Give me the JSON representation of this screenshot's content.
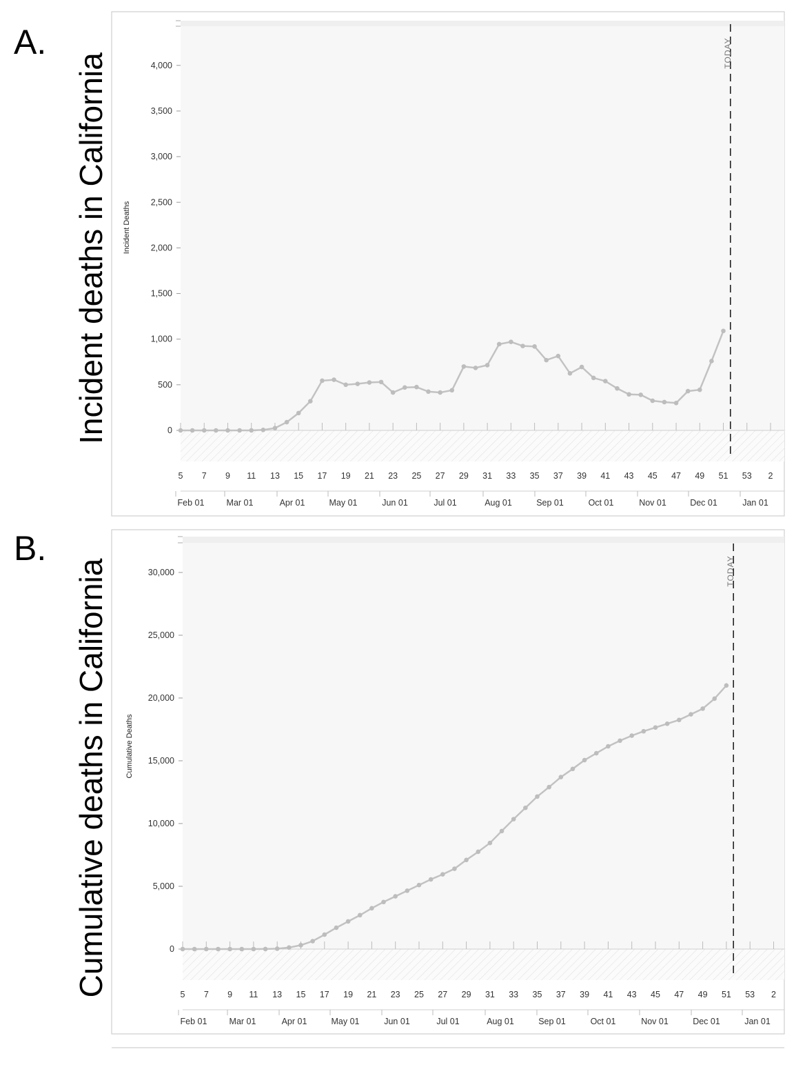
{
  "panels": [
    {
      "letter": "A.",
      "side_title": "Incident deaths in California",
      "today_label": "TODAY"
    },
    {
      "letter": "B.",
      "side_title": "Cumulative deaths in California",
      "today_label": "TODAY"
    }
  ],
  "chart_data": [
    {
      "type": "line",
      "ylabel": "Incident Deaths",
      "ylim": [
        0,
        4400
      ],
      "y_ticks": [
        0,
        500,
        1000,
        1500,
        2000,
        2500,
        3000,
        3500,
        4000
      ],
      "y_tick_labels": [
        "0",
        "500",
        "1,000",
        "1,500",
        "2,000",
        "2,500",
        "3,000",
        "3,500",
        "4,000"
      ],
      "x_axis": "epiweek",
      "week_tick_labels": [
        "5",
        "7",
        "9",
        "11",
        "13",
        "15",
        "17",
        "19",
        "21",
        "23",
        "25",
        "27",
        "29",
        "31",
        "33",
        "35",
        "37",
        "39",
        "41",
        "43",
        "45",
        "47",
        "49",
        "51",
        "53",
        "2"
      ],
      "month_labels": [
        "Feb 01",
        "Mar 01",
        "Apr 01",
        "May 01",
        "Jun 01",
        "Jul 01",
        "Aug 01",
        "Sep 01",
        "Oct 01",
        "Nov 01",
        "Dec 01",
        "Jan 01"
      ],
      "today_week": 51.6,
      "grid": false,
      "series": [
        {
          "x": [
            5,
            6,
            7,
            8,
            9,
            10,
            11,
            12,
            13,
            14,
            15,
            16,
            17,
            18,
            19,
            20,
            21,
            22,
            23,
            24,
            25,
            26,
            27,
            28,
            29,
            30,
            31,
            32,
            33,
            34,
            35,
            36,
            37,
            38,
            39,
            40,
            41,
            42,
            43,
            44,
            45,
            46,
            47,
            48,
            49,
            50,
            51
          ],
          "values": [
            0,
            0,
            0,
            0,
            0,
            0,
            0,
            5,
            25,
            90,
            190,
            320,
            545,
            555,
            500,
            510,
            525,
            530,
            415,
            470,
            475,
            425,
            415,
            440,
            700,
            685,
            715,
            945,
            970,
            925,
            920,
            770,
            815,
            625,
            695,
            575,
            540,
            460,
            395,
            390,
            325,
            310,
            300,
            430,
            445,
            760,
            1090
          ]
        }
      ]
    },
    {
      "type": "line",
      "ylabel": "Cumulative Deaths",
      "ylim": [
        0,
        32000
      ],
      "y_ticks": [
        0,
        5000,
        10000,
        15000,
        20000,
        25000,
        30000
      ],
      "y_tick_labels": [
        "0",
        "5,000",
        "10,000",
        "15,000",
        "20,000",
        "25,000",
        "30,000"
      ],
      "x_axis": "epiweek",
      "week_tick_labels": [
        "5",
        "7",
        "9",
        "11",
        "13",
        "15",
        "17",
        "19",
        "21",
        "23",
        "25",
        "27",
        "29",
        "31",
        "33",
        "35",
        "37",
        "39",
        "41",
        "43",
        "45",
        "47",
        "49",
        "51",
        "53",
        "2"
      ],
      "month_labels": [
        "Feb 01",
        "Mar 01",
        "Apr 01",
        "May 01",
        "Jun 01",
        "Jul 01",
        "Aug 01",
        "Sep 01",
        "Oct 01",
        "Nov 01",
        "Dec 01",
        "Jan 01"
      ],
      "today_week": 51.6,
      "grid": false,
      "series": [
        {
          "x": [
            5,
            6,
            7,
            8,
            9,
            10,
            11,
            12,
            13,
            14,
            15,
            16,
            17,
            18,
            19,
            20,
            21,
            22,
            23,
            24,
            25,
            26,
            27,
            28,
            29,
            30,
            31,
            32,
            33,
            34,
            35,
            36,
            37,
            38,
            39,
            40,
            41,
            42,
            43,
            44,
            45,
            46,
            47,
            48,
            49,
            50,
            51
          ],
          "values": [
            0,
            0,
            0,
            0,
            0,
            0,
            0,
            5,
            30,
            120,
            310,
            630,
            1150,
            1700,
            2200,
            2700,
            3250,
            3750,
            4200,
            4650,
            5100,
            5550,
            5950,
            6400,
            7100,
            7750,
            8450,
            9400,
            10350,
            11250,
            12150,
            12900,
            13700,
            14350,
            15050,
            15600,
            16150,
            16600,
            17000,
            17350,
            17650,
            17950,
            18250,
            18700,
            19150,
            19950,
            21000
          ]
        }
      ]
    }
  ]
}
